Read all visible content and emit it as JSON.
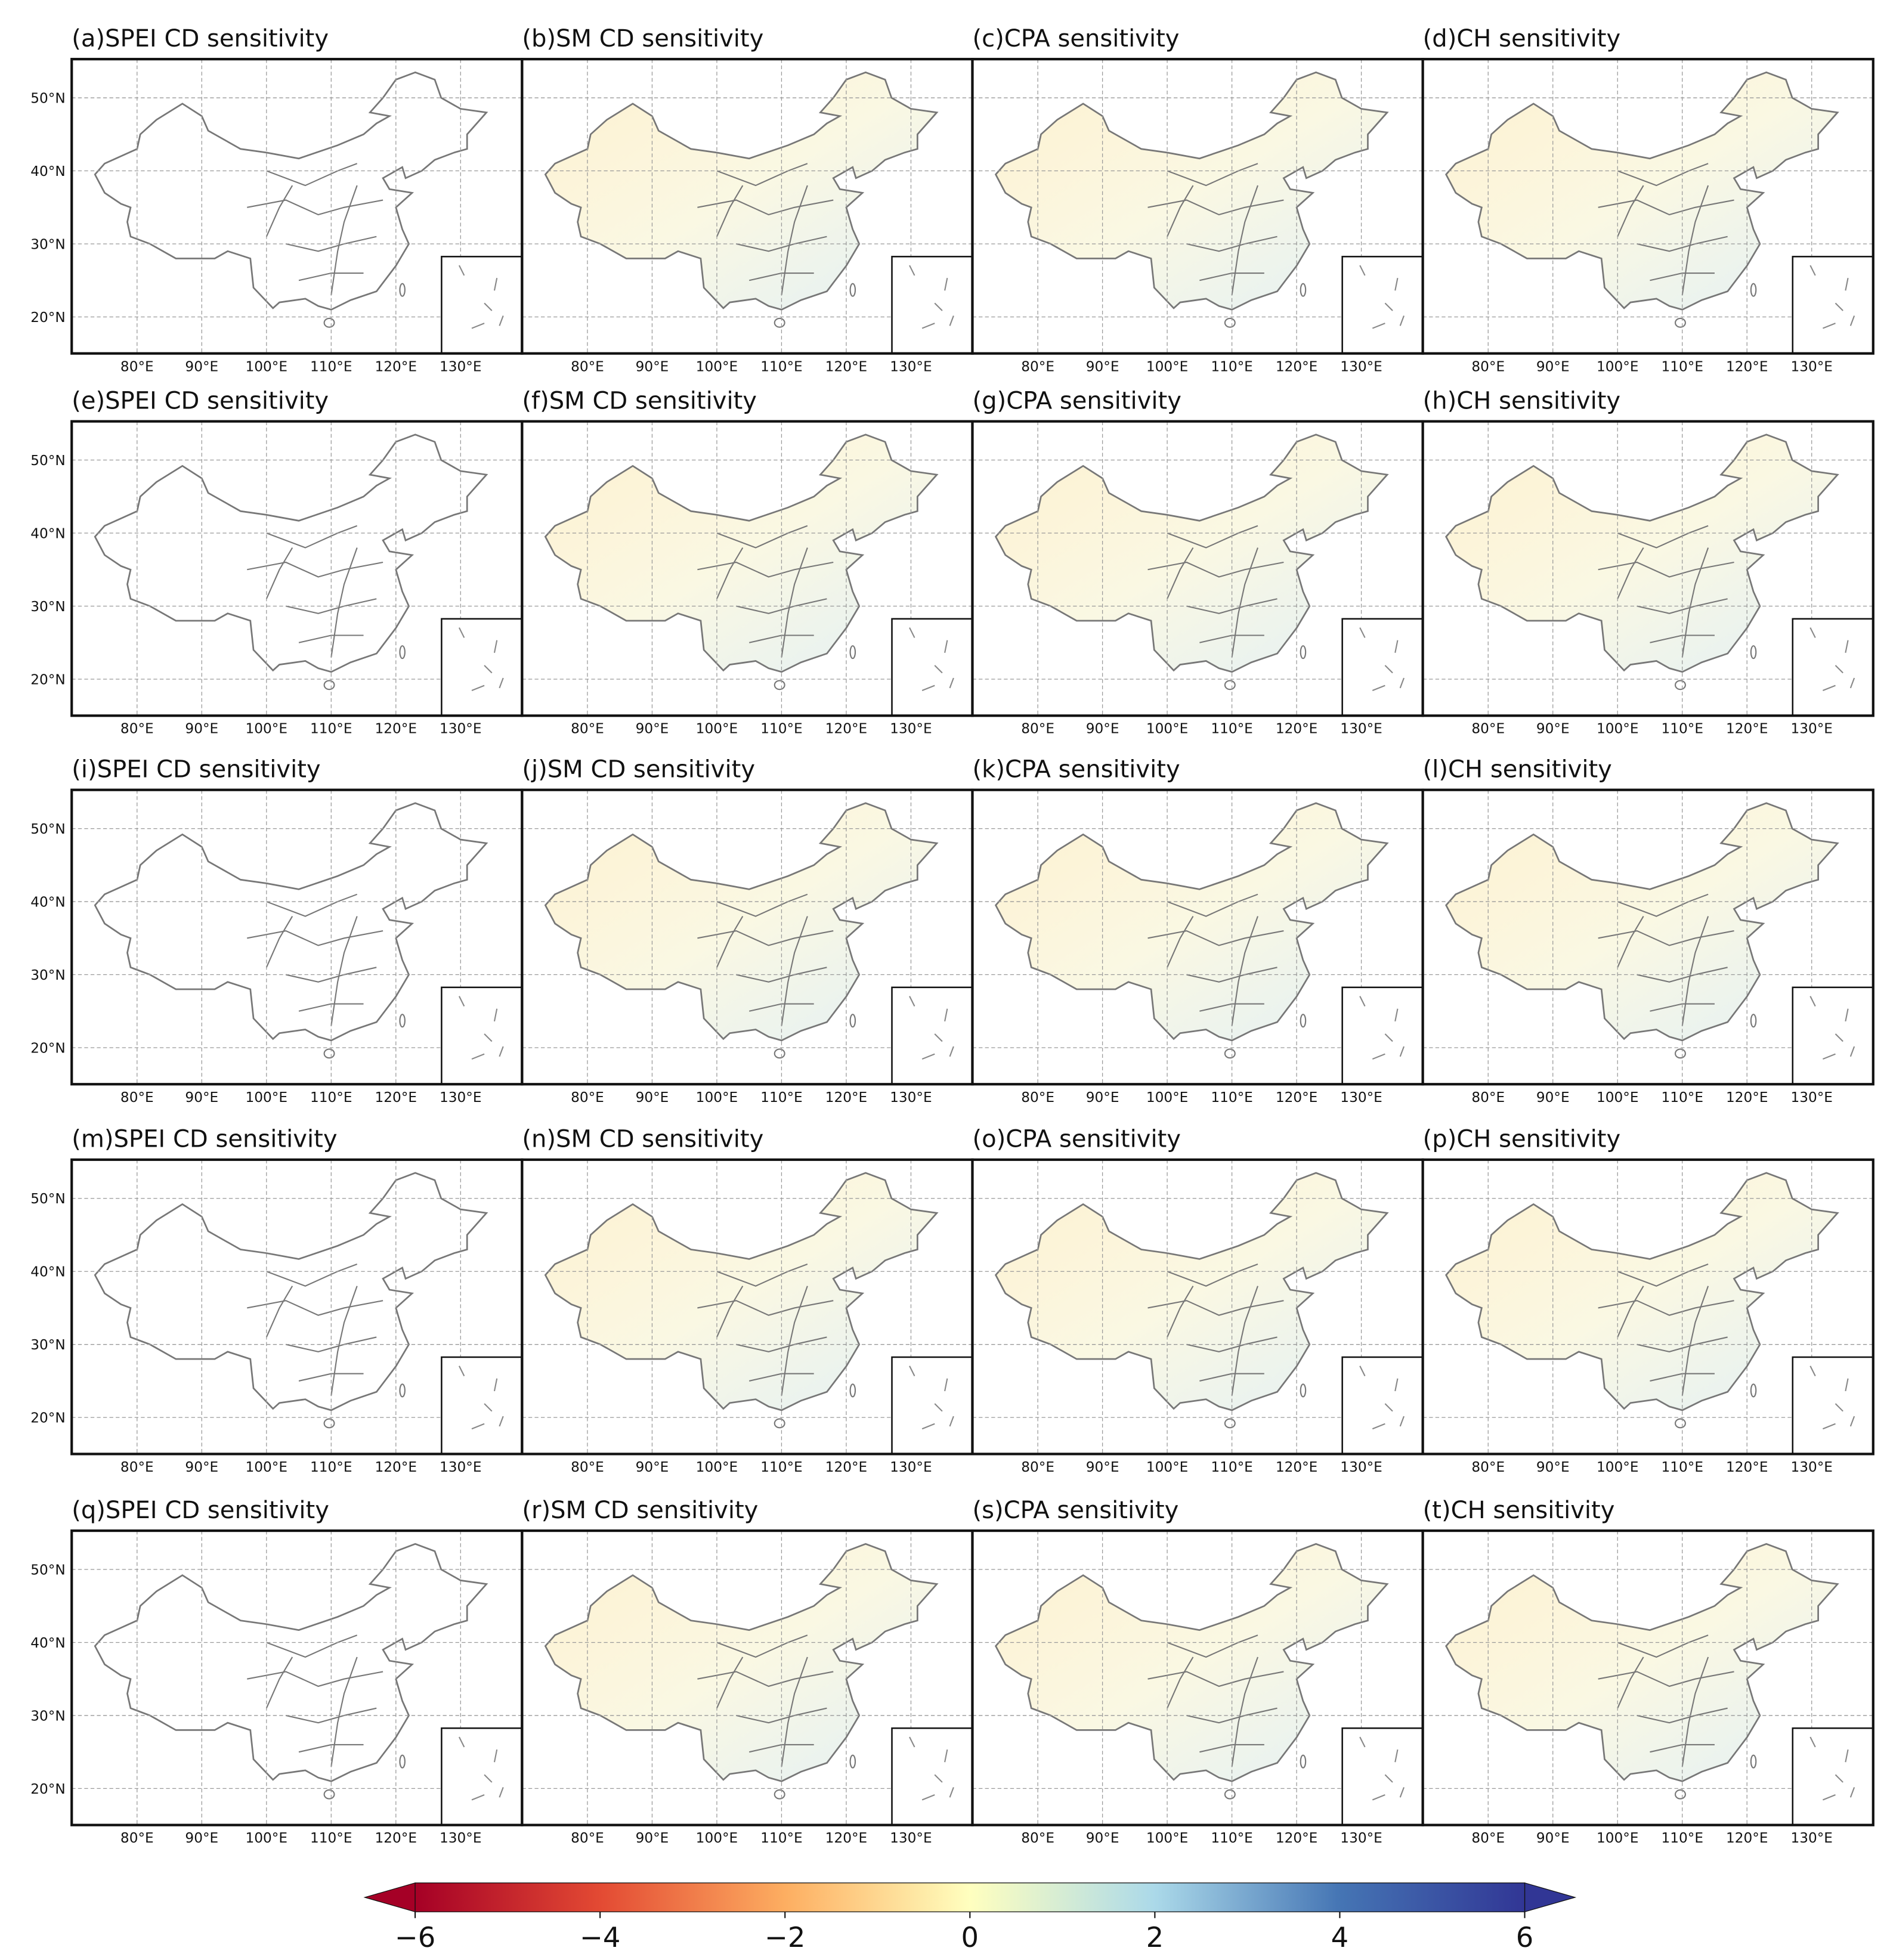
{
  "map": {
    "panels": [
      "(a)SPEI CD sensitivity",
      "(b)SM CD sensitivity",
      "(c)CPA sensitivity",
      "(d)CH sensitivity",
      "(e)SPEI CD sensitivity",
      "(f)SM CD sensitivity",
      "(g)CPA sensitivity",
      "(h)CH sensitivity",
      "(i)SPEI CD sensitivity",
      "(j)SM CD sensitivity",
      "(k)CPA sensitivity",
      "(l)CH sensitivity",
      "(m)SPEI CD sensitivity",
      "(n)SM CD sensitivity",
      "(o)CPA sensitivity",
      "(p)CH sensitivity",
      "(q)SPEI CD sensitivity",
      "(r)SM CD sensitivity",
      "(s)CPA sensitivity",
      "(t)CH sensitivity"
    ],
    "xlim": [
      69.9,
      139.5
    ],
    "ylim": [
      15,
      55.3
    ],
    "xticks": [
      {
        "value": 80,
        "label": "80°E"
      },
      {
        "value": 90,
        "label": "90°E"
      },
      {
        "value": 100,
        "label": "100°E"
      },
      {
        "value": 110,
        "label": "110°E"
      },
      {
        "value": 120,
        "label": "120°E"
      },
      {
        "value": 130,
        "label": "130°E"
      }
    ],
    "yticks": [
      {
        "value": 50,
        "label": "50°N"
      },
      {
        "value": 40,
        "label": "40°N"
      },
      {
        "value": 30,
        "label": "30°N"
      },
      {
        "value": 20,
        "label": "20°N"
      }
    ],
    "colorbar": {
      "lim": [
        -6,
        6
      ],
      "ticks": [
        {
          "value": -6,
          "label": "−6"
        },
        {
          "value": -4,
          "label": "−4"
        },
        {
          "value": -2,
          "label": "−2"
        },
        0,
        2,
        4,
        6
      ],
      "colors": [
        "#a50026",
        "#e34a33",
        "#fdae61",
        "#ffffbf",
        "#abd9e9",
        "#4575b4",
        "#313695"
      ]
    }
  }
}
